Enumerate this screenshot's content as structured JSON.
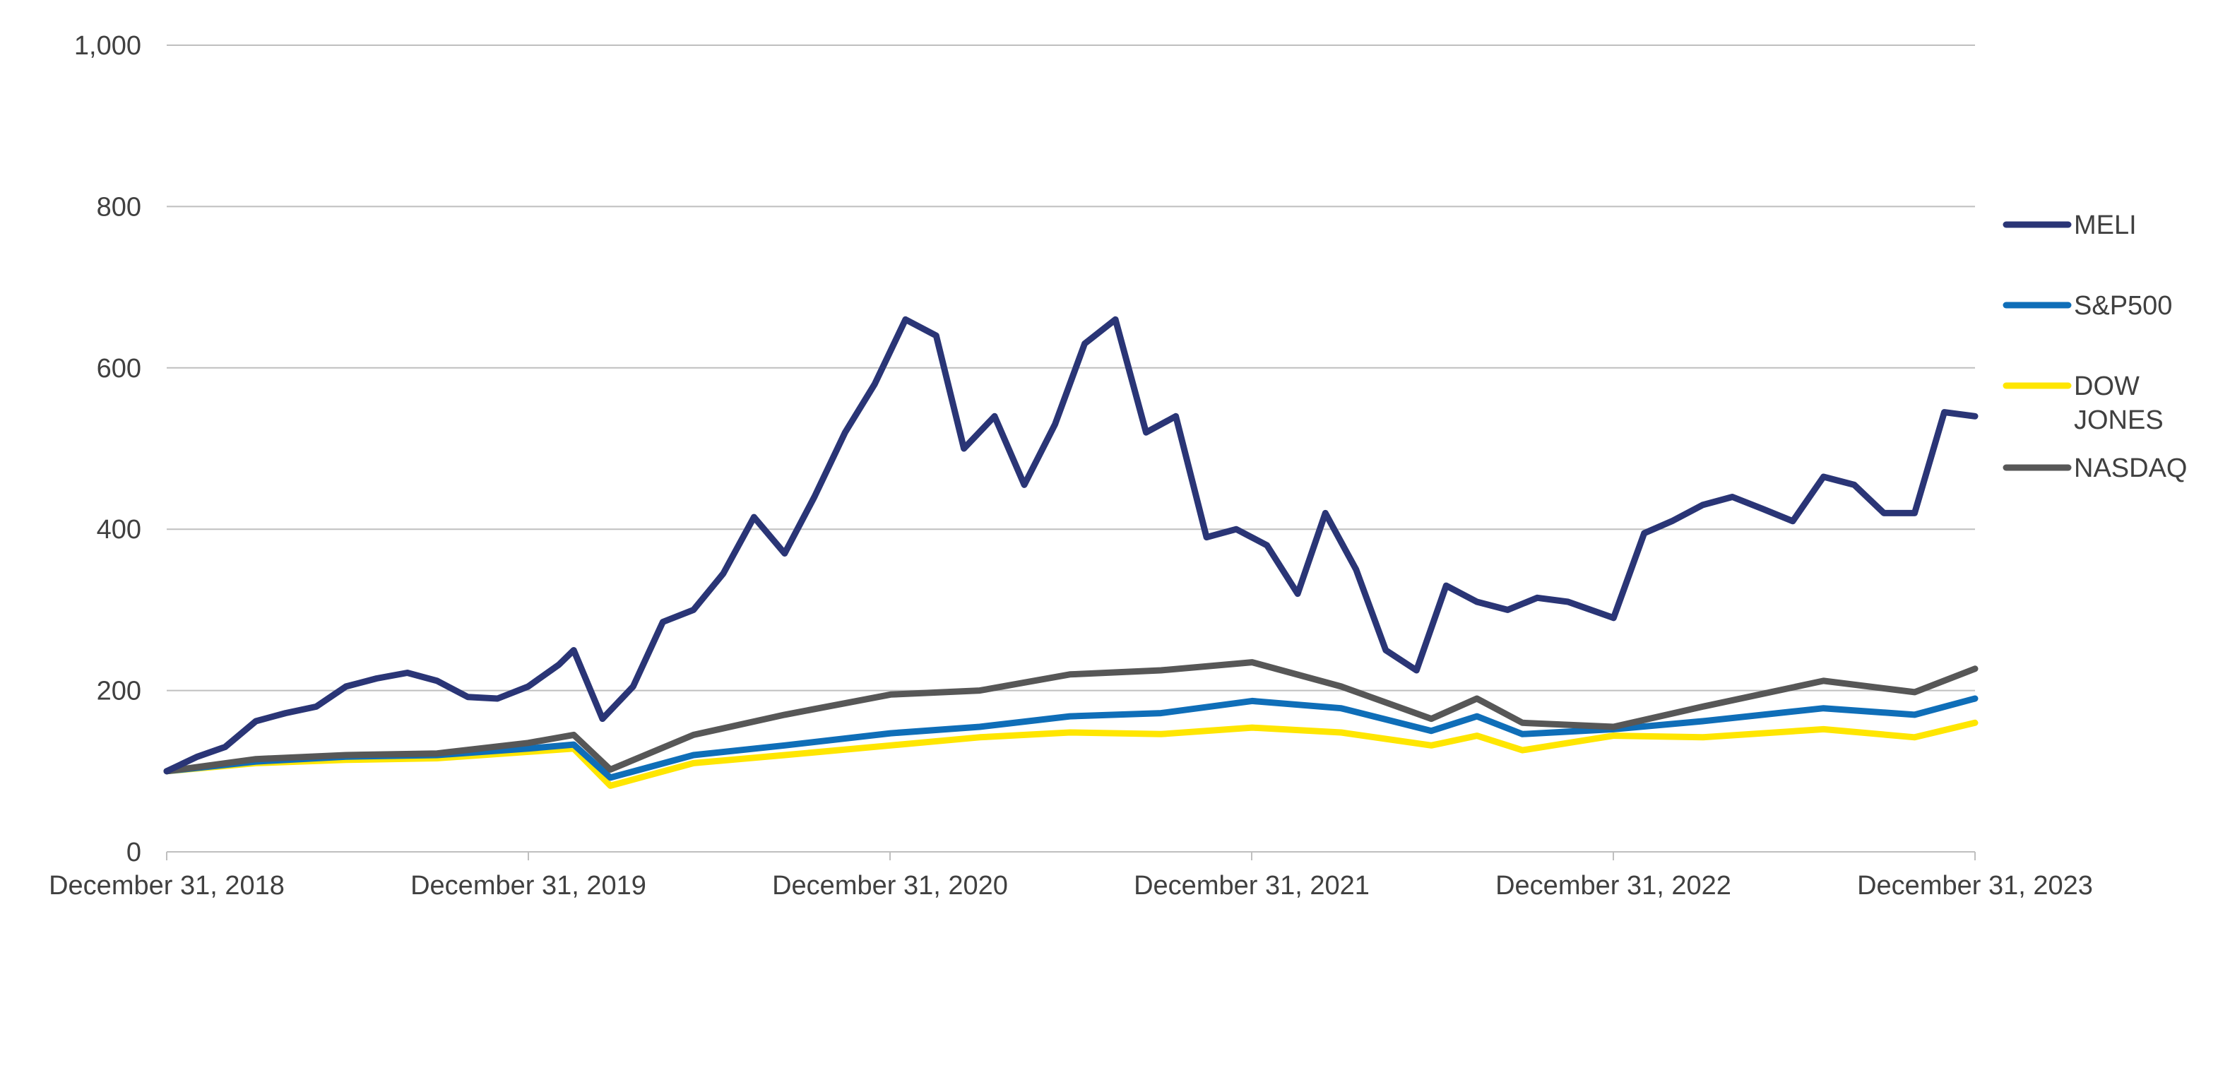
{
  "chart_data": {
    "type": "line",
    "title": "",
    "xlabel": "",
    "ylabel": "",
    "x_ticks": [
      "December 31, 2018",
      "December 31, 2019",
      "December 31, 2020",
      "December 31, 2021",
      "December 31, 2022",
      "December 31, 2023"
    ],
    "y_ticks": [
      "0",
      "200",
      "400",
      "600",
      "800",
      "1,000"
    ],
    "ylim": [
      0,
      1000
    ],
    "xlim": [
      "2018-12-31",
      "2023-12-31"
    ],
    "grid": "horizontal",
    "legend_position": "right",
    "series": [
      {
        "name": "MELI",
        "color": "#2a3576",
        "points": [
          [
            "2018-12-31",
            100
          ],
          [
            "2019-01-31",
            118
          ],
          [
            "2019-02-28",
            130
          ],
          [
            "2019-03-31",
            162
          ],
          [
            "2019-04-30",
            172
          ],
          [
            "2019-05-31",
            180
          ],
          [
            "2019-06-30",
            205
          ],
          [
            "2019-07-31",
            215
          ],
          [
            "2019-08-31",
            222
          ],
          [
            "2019-09-30",
            212
          ],
          [
            "2019-10-31",
            192
          ],
          [
            "2019-11-30",
            190
          ],
          [
            "2019-12-31",
            205
          ],
          [
            "2020-01-31",
            232
          ],
          [
            "2020-02-15",
            250
          ],
          [
            "2020-03-15",
            165
          ],
          [
            "2020-04-15",
            205
          ],
          [
            "2020-05-15",
            285
          ],
          [
            "2020-06-15",
            300
          ],
          [
            "2020-07-15",
            345
          ],
          [
            "2020-08-15",
            415
          ],
          [
            "2020-09-15",
            370
          ],
          [
            "2020-10-15",
            440
          ],
          [
            "2020-11-15",
            520
          ],
          [
            "2020-12-15",
            580
          ],
          [
            "2021-01-15",
            660
          ],
          [
            "2021-02-15",
            640
          ],
          [
            "2021-03-15",
            500
          ],
          [
            "2021-04-15",
            540
          ],
          [
            "2021-05-15",
            455
          ],
          [
            "2021-06-15",
            530
          ],
          [
            "2021-07-15",
            630
          ],
          [
            "2021-08-15",
            660
          ],
          [
            "2021-09-15",
            520
          ],
          [
            "2021-10-15",
            540
          ],
          [
            "2021-11-15",
            390
          ],
          [
            "2021-12-15",
            400
          ],
          [
            "2022-01-15",
            380
          ],
          [
            "2022-02-15",
            320
          ],
          [
            "2022-03-15",
            420
          ],
          [
            "2022-04-15",
            350
          ],
          [
            "2022-05-15",
            250
          ],
          [
            "2022-06-15",
            225
          ],
          [
            "2022-07-15",
            330
          ],
          [
            "2022-08-15",
            310
          ],
          [
            "2022-09-15",
            300
          ],
          [
            "2022-10-15",
            315
          ],
          [
            "2022-11-15",
            310
          ],
          [
            "2022-12-31",
            290
          ],
          [
            "2023-01-31",
            395
          ],
          [
            "2023-02-28",
            410
          ],
          [
            "2023-03-31",
            430
          ],
          [
            "2023-04-30",
            440
          ],
          [
            "2023-05-31",
            425
          ],
          [
            "2023-06-30",
            410
          ],
          [
            "2023-07-31",
            465
          ],
          [
            "2023-08-31",
            455
          ],
          [
            "2023-09-30",
            420
          ],
          [
            "2023-10-31",
            420
          ],
          [
            "2023-11-30",
            545
          ],
          [
            "2023-12-31",
            540
          ]
        ]
      },
      {
        "name": "S&P500",
        "color": "#0f6eb8",
        "points": [
          [
            "2018-12-31",
            100
          ],
          [
            "2019-03-31",
            112
          ],
          [
            "2019-06-30",
            118
          ],
          [
            "2019-09-30",
            120
          ],
          [
            "2019-12-31",
            128
          ],
          [
            "2020-02-15",
            133
          ],
          [
            "2020-03-23",
            92
          ],
          [
            "2020-06-15",
            120
          ],
          [
            "2020-09-15",
            132
          ],
          [
            "2020-12-31",
            147
          ],
          [
            "2021-03-31",
            155
          ],
          [
            "2021-06-30",
            168
          ],
          [
            "2021-09-30",
            172
          ],
          [
            "2021-12-31",
            187
          ],
          [
            "2022-03-31",
            178
          ],
          [
            "2022-06-30",
            150
          ],
          [
            "2022-08-15",
            168
          ],
          [
            "2022-09-30",
            146
          ],
          [
            "2022-12-31",
            152
          ],
          [
            "2023-03-31",
            162
          ],
          [
            "2023-07-31",
            178
          ],
          [
            "2023-10-31",
            170
          ],
          [
            "2023-12-31",
            190
          ]
        ]
      },
      {
        "name": "DOW JONES",
        "color": "#ffe600",
        "points": [
          [
            "2018-12-31",
            100
          ],
          [
            "2019-03-31",
            110
          ],
          [
            "2019-06-30",
            114
          ],
          [
            "2019-09-30",
            116
          ],
          [
            "2019-12-31",
            124
          ],
          [
            "2020-02-15",
            128
          ],
          [
            "2020-03-23",
            82
          ],
          [
            "2020-06-15",
            110
          ],
          [
            "2020-09-15",
            120
          ],
          [
            "2020-12-31",
            132
          ],
          [
            "2021-03-31",
            142
          ],
          [
            "2021-06-30",
            148
          ],
          [
            "2021-09-30",
            146
          ],
          [
            "2021-12-31",
            154
          ],
          [
            "2022-03-31",
            148
          ],
          [
            "2022-06-30",
            132
          ],
          [
            "2022-08-15",
            144
          ],
          [
            "2022-09-30",
            126
          ],
          [
            "2022-12-31",
            144
          ],
          [
            "2023-03-31",
            142
          ],
          [
            "2023-07-31",
            152
          ],
          [
            "2023-10-31",
            142
          ],
          [
            "2023-12-31",
            160
          ]
        ]
      },
      {
        "name": "NASDAQ",
        "color": "#575757",
        "points": [
          [
            "2018-12-31",
            100
          ],
          [
            "2019-03-31",
            115
          ],
          [
            "2019-06-30",
            120
          ],
          [
            "2019-09-30",
            122
          ],
          [
            "2019-12-31",
            135
          ],
          [
            "2020-02-15",
            145
          ],
          [
            "2020-03-23",
            102
          ],
          [
            "2020-06-15",
            145
          ],
          [
            "2020-09-15",
            170
          ],
          [
            "2020-12-31",
            195
          ],
          [
            "2021-03-31",
            200
          ],
          [
            "2021-06-30",
            220
          ],
          [
            "2021-09-30",
            225
          ],
          [
            "2021-12-31",
            235
          ],
          [
            "2022-03-31",
            205
          ],
          [
            "2022-06-30",
            165
          ],
          [
            "2022-08-15",
            190
          ],
          [
            "2022-09-30",
            160
          ],
          [
            "2022-12-31",
            155
          ],
          [
            "2023-03-31",
            180
          ],
          [
            "2023-07-31",
            212
          ],
          [
            "2023-10-31",
            198
          ],
          [
            "2023-12-31",
            227
          ]
        ]
      }
    ]
  }
}
